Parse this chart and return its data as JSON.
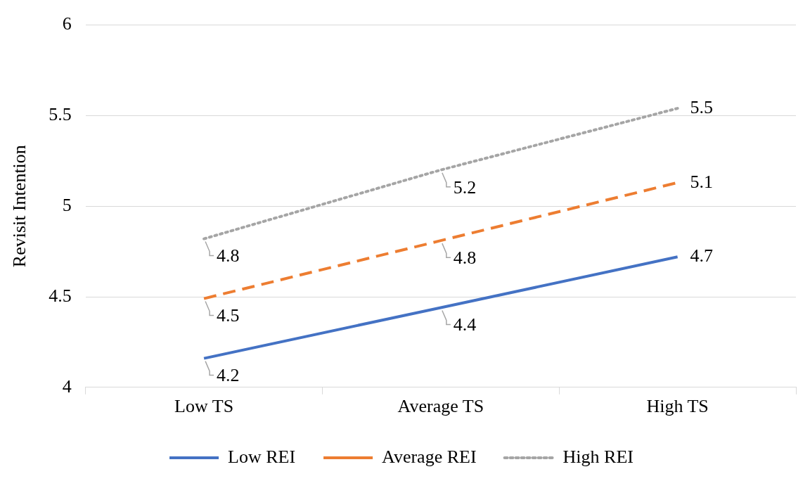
{
  "chart_data": {
    "type": "line",
    "ylabel": "Revisit Intention",
    "categories": [
      "Low TS",
      "Average TS",
      "High TS"
    ],
    "series": [
      {
        "name": "Low REI",
        "color": "#4472c4",
        "line_style": "solid",
        "values": [
          4.16,
          4.44,
          4.72
        ],
        "value_labels": [
          "4.2",
          "4.4",
          "4.7"
        ]
      },
      {
        "name": "Average REI",
        "color": "#ed7d31",
        "line_style": "dashed",
        "values": [
          4.49,
          4.81,
          5.13
        ],
        "value_labels": [
          "4.5",
          "4.8",
          "5.1"
        ]
      },
      {
        "name": "High REI",
        "color": "#a5a5a5",
        "line_style": "dotted",
        "values": [
          4.82,
          5.2,
          5.54
        ],
        "value_labels": [
          "4.8",
          "5.2",
          "5.5"
        ]
      }
    ],
    "ylim": [
      4,
      6
    ],
    "yticks": [
      4,
      4.5,
      5,
      5.5,
      6
    ],
    "grid": "y",
    "legend": "bottom",
    "marker": "none"
  }
}
